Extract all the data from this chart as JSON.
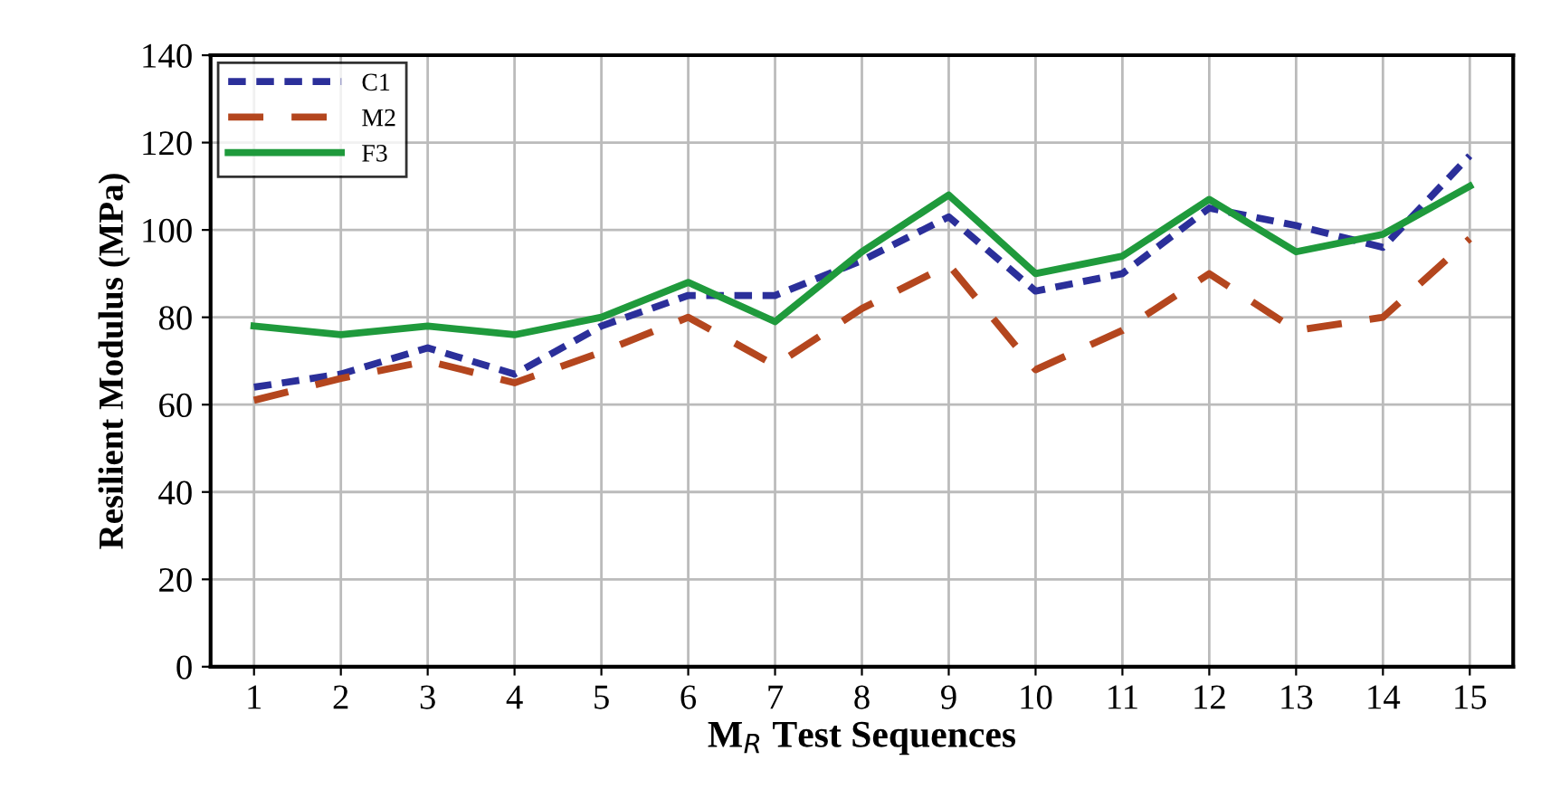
{
  "chart_data": {
    "type": "line",
    "xlabel": "M$_{R}$ Test Sequences",
    "ylabel": "Resilient Modulus (MPa)",
    "categories": [
      "1",
      "2",
      "3",
      "4",
      "5",
      "6",
      "7",
      "8",
      "9",
      "10",
      "11",
      "12",
      "13",
      "14",
      "15"
    ],
    "series": [
      {
        "name": "C1",
        "color": "#2b2f9a",
        "line_style": "dotted",
        "values": [
          64,
          67,
          73,
          67,
          78,
          85,
          85,
          93,
          103,
          86,
          90,
          105,
          101,
          96,
          117
        ]
      },
      {
        "name": "M2",
        "color": "#b4461e",
        "line_style": "dashed",
        "values": [
          61,
          66,
          70,
          65,
          72,
          80,
          69,
          82,
          92,
          68,
          77,
          90,
          77,
          80,
          98
        ]
      },
      {
        "name": "F3",
        "color": "#1f9a3c",
        "line_style": "solid",
        "values": [
          78,
          76,
          78,
          76,
          80,
          88,
          79,
          95,
          108,
          90,
          94,
          107,
          95,
          99,
          110
        ]
      }
    ],
    "ylim": [
      0,
      140
    ],
    "yticks": [
      0,
      20,
      40,
      60,
      80,
      100,
      120,
      140
    ],
    "grid": true,
    "legend": "top left",
    "marker": "none"
  }
}
